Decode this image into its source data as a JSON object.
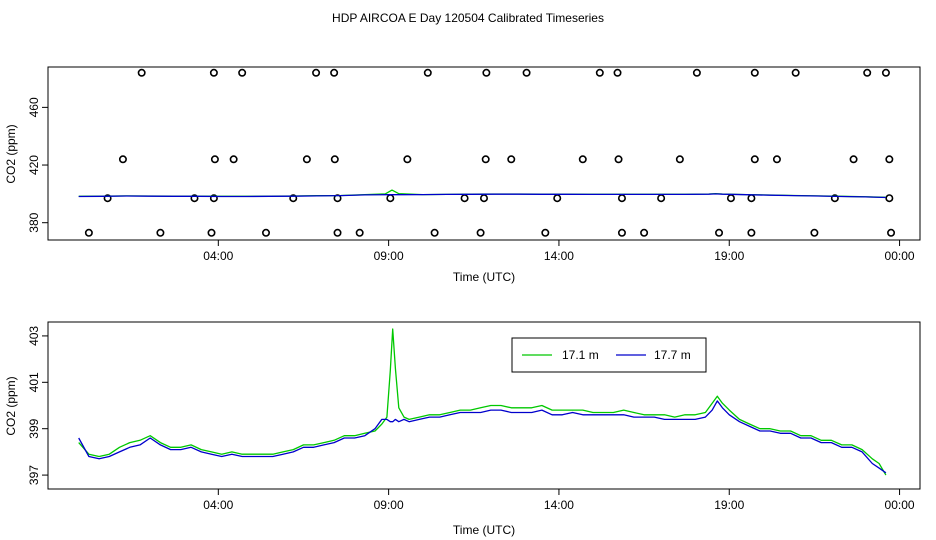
{
  "title": "HDP AIRCOA E  Day 120504  Calibrated Timeseries",
  "colors": {
    "green": "#00c800",
    "blue": "#0000cc",
    "ink": "#000000"
  },
  "chart_data": [
    {
      "type": "scatter",
      "xlabel": "Time (UTC)",
      "ylabel": "CO2 (ppm)",
      "xlim": [
        -1.0,
        24.6
      ],
      "ylim": [
        368,
        488
      ],
      "x_ticks": [
        4,
        9,
        14,
        19,
        24
      ],
      "x_tick_labels": [
        "04:00",
        "09:00",
        "14:00",
        "19:00",
        "00:00"
      ],
      "y_ticks": [
        380,
        420,
        460
      ],
      "y_tick_labels": [
        "380",
        "420",
        "460"
      ],
      "grid": false,
      "series": [
        {
          "marker": "open-circle",
          "points": [
            [
              1.75,
              484
            ],
            [
              3.87,
              484
            ],
            [
              4.7,
              484
            ],
            [
              6.87,
              484
            ],
            [
              7.4,
              484
            ],
            [
              10.15,
              484
            ],
            [
              11.87,
              484
            ],
            [
              13.05,
              484
            ],
            [
              15.2,
              484
            ],
            [
              15.72,
              484
            ],
            [
              18.05,
              484
            ],
            [
              19.75,
              484
            ],
            [
              20.95,
              484
            ],
            [
              23.05,
              484
            ],
            [
              23.6,
              484
            ],
            [
              1.2,
              424
            ],
            [
              3.9,
              424
            ],
            [
              4.45,
              424
            ],
            [
              6.6,
              424
            ],
            [
              7.42,
              424
            ],
            [
              9.55,
              424
            ],
            [
              11.85,
              424
            ],
            [
              12.6,
              424
            ],
            [
              14.7,
              424
            ],
            [
              15.75,
              424
            ],
            [
              17.55,
              424
            ],
            [
              19.75,
              424
            ],
            [
              20.4,
              424
            ],
            [
              22.65,
              424
            ],
            [
              23.7,
              424
            ],
            [
              0.75,
              397
            ],
            [
              3.3,
              397
            ],
            [
              3.87,
              397
            ],
            [
              6.2,
              397
            ],
            [
              7.5,
              397
            ],
            [
              9.05,
              397
            ],
            [
              11.23,
              397
            ],
            [
              11.8,
              397
            ],
            [
              13.95,
              397
            ],
            [
              15.85,
              397
            ],
            [
              17.0,
              397
            ],
            [
              19.05,
              397
            ],
            [
              19.65,
              397
            ],
            [
              22.1,
              397
            ],
            [
              23.7,
              397
            ],
            [
              0.2,
              373
            ],
            [
              2.3,
              373
            ],
            [
              3.8,
              373
            ],
            [
              5.4,
              373
            ],
            [
              7.5,
              373
            ],
            [
              8.15,
              373
            ],
            [
              10.35,
              373
            ],
            [
              11.7,
              373
            ],
            [
              13.6,
              373
            ],
            [
              15.85,
              373
            ],
            [
              16.5,
              373
            ],
            [
              18.7,
              373
            ],
            [
              19.65,
              373
            ],
            [
              21.5,
              373
            ],
            [
              23.75,
              373
            ]
          ]
        },
        {
          "name": "17.1 m",
          "color": "#00c800",
          "x": [
            -0.1,
            0.6,
            1.3,
            2.0,
            2.7,
            3.4,
            4.1,
            4.8,
            5.5,
            6.2,
            6.9,
            7.6,
            8.3,
            8.9,
            9.1,
            9.3,
            10.0,
            10.7,
            11.4,
            12.1,
            12.8,
            13.5,
            14.2,
            14.9,
            15.6,
            16.3,
            17.0,
            17.7,
            18.4,
            18.6,
            18.8,
            19.5,
            20.2,
            20.9,
            21.6,
            22.3,
            23.0,
            23.6
          ],
          "y": [
            398.3,
            398.4,
            398.6,
            398.5,
            398.4,
            398.4,
            398.3,
            398.3,
            398.4,
            398.5,
            398.7,
            398.9,
            399.4,
            400.0,
            402.6,
            400.1,
            399.5,
            399.6,
            399.8,
            399.9,
            399.9,
            399.8,
            399.8,
            399.7,
            399.7,
            399.7,
            399.7,
            399.7,
            399.9,
            400.2,
            399.9,
            399.5,
            399.2,
            398.9,
            398.6,
            398.3,
            398.0,
            397.6
          ]
        },
        {
          "name": "17.7 m",
          "color": "#0000cc",
          "x": [
            -0.1,
            0.6,
            1.3,
            2.0,
            2.7,
            3.4,
            4.1,
            4.8,
            5.5,
            6.2,
            6.9,
            7.6,
            8.3,
            8.9,
            9.1,
            9.3,
            10.0,
            10.7,
            11.4,
            12.1,
            12.8,
            13.5,
            14.2,
            14.9,
            15.6,
            16.3,
            17.0,
            17.7,
            18.4,
            18.6,
            18.8,
            19.5,
            20.2,
            20.9,
            21.6,
            22.3,
            23.0,
            23.6
          ],
          "y": [
            398.2,
            398.3,
            398.5,
            398.4,
            398.3,
            398.3,
            398.2,
            398.2,
            398.3,
            398.4,
            398.6,
            398.8,
            399.3,
            399.4,
            399.4,
            399.4,
            399.5,
            399.6,
            399.7,
            399.8,
            399.8,
            399.7,
            399.7,
            399.6,
            399.6,
            399.6,
            399.6,
            399.6,
            399.8,
            400.0,
            399.8,
            399.4,
            399.1,
            398.8,
            398.5,
            398.2,
            397.9,
            397.5
          ]
        }
      ]
    },
    {
      "type": "line",
      "xlabel": "Time (UTC)",
      "ylabel": "CO2 (ppm)",
      "xlim": [
        -1.0,
        24.6
      ],
      "ylim": [
        396.4,
        403.6
      ],
      "x_ticks": [
        4,
        9,
        14,
        19,
        24
      ],
      "x_tick_labels": [
        "04:00",
        "09:00",
        "14:00",
        "19:00",
        "00:00"
      ],
      "y_ticks": [
        397,
        399,
        401,
        403
      ],
      "y_tick_labels": [
        "397",
        "399",
        "401",
        "403"
      ],
      "grid": false,
      "legend": "top-center",
      "series": [
        {
          "name": "17.1 m",
          "color": "#00c800",
          "x": [
            -0.1,
            0.2,
            0.5,
            0.8,
            1.1,
            1.4,
            1.7,
            2.0,
            2.3,
            2.6,
            2.9,
            3.2,
            3.5,
            3.8,
            4.1,
            4.4,
            4.7,
            5.0,
            5.3,
            5.6,
            5.9,
            6.2,
            6.5,
            6.8,
            7.1,
            7.4,
            7.7,
            8.0,
            8.3,
            8.6,
            8.8,
            8.95,
            9.05,
            9.12,
            9.2,
            9.3,
            9.45,
            9.6,
            9.9,
            10.2,
            10.5,
            10.8,
            11.1,
            11.4,
            11.7,
            12.0,
            12.3,
            12.6,
            12.9,
            13.2,
            13.5,
            13.8,
            14.1,
            14.4,
            14.7,
            15.0,
            15.3,
            15.6,
            15.9,
            16.2,
            16.5,
            16.8,
            17.1,
            17.4,
            17.7,
            18.0,
            18.3,
            18.5,
            18.65,
            18.8,
            19.0,
            19.3,
            19.6,
            19.9,
            20.2,
            20.5,
            20.8,
            21.1,
            21.4,
            21.7,
            22.0,
            22.3,
            22.6,
            22.9,
            23.2,
            23.4,
            23.6
          ],
          "y": [
            398.4,
            397.9,
            397.8,
            397.9,
            398.2,
            398.4,
            398.5,
            398.7,
            398.4,
            398.2,
            398.2,
            398.3,
            398.1,
            398.0,
            397.9,
            398.0,
            397.9,
            397.9,
            397.9,
            397.9,
            398.0,
            398.1,
            398.3,
            398.3,
            398.4,
            398.5,
            398.7,
            398.7,
            398.8,
            398.9,
            399.2,
            399.5,
            401.5,
            403.3,
            401.6,
            399.9,
            399.5,
            399.4,
            399.5,
            399.6,
            399.6,
            399.7,
            399.8,
            399.8,
            399.9,
            400.0,
            400.0,
            399.9,
            399.9,
            399.9,
            400.0,
            399.8,
            399.8,
            399.8,
            399.8,
            399.7,
            399.7,
            399.7,
            399.8,
            399.7,
            399.6,
            399.6,
            399.6,
            399.5,
            399.6,
            399.6,
            399.7,
            400.1,
            400.4,
            400.1,
            399.8,
            399.4,
            399.2,
            399.0,
            399.0,
            398.9,
            398.9,
            398.7,
            398.7,
            398.5,
            398.5,
            398.3,
            398.3,
            398.1,
            397.7,
            397.5,
            397.0
          ]
        },
        {
          "name": "17.7 m",
          "color": "#0000cc",
          "x": [
            -0.1,
            0.2,
            0.5,
            0.8,
            1.1,
            1.4,
            1.7,
            2.0,
            2.3,
            2.6,
            2.9,
            3.2,
            3.5,
            3.8,
            4.1,
            4.4,
            4.7,
            5.0,
            5.3,
            5.6,
            5.9,
            6.2,
            6.5,
            6.8,
            7.1,
            7.4,
            7.7,
            8.0,
            8.3,
            8.6,
            8.8,
            8.95,
            9.05,
            9.12,
            9.2,
            9.3,
            9.45,
            9.6,
            9.9,
            10.2,
            10.5,
            10.8,
            11.1,
            11.4,
            11.7,
            12.0,
            12.3,
            12.6,
            12.9,
            13.2,
            13.5,
            13.8,
            14.1,
            14.4,
            14.7,
            15.0,
            15.3,
            15.6,
            15.9,
            16.2,
            16.5,
            16.8,
            17.1,
            17.4,
            17.7,
            18.0,
            18.3,
            18.5,
            18.65,
            18.8,
            19.0,
            19.3,
            19.6,
            19.9,
            20.2,
            20.5,
            20.8,
            21.1,
            21.4,
            21.7,
            22.0,
            22.3,
            22.6,
            22.9,
            23.2,
            23.4,
            23.6
          ],
          "y": [
            398.6,
            397.8,
            397.7,
            397.8,
            398.0,
            398.2,
            398.3,
            398.6,
            398.3,
            398.1,
            398.1,
            398.2,
            398.0,
            397.9,
            397.8,
            397.9,
            397.8,
            397.8,
            397.8,
            397.8,
            397.9,
            398.0,
            398.2,
            398.2,
            398.3,
            398.4,
            398.6,
            398.6,
            398.7,
            399.0,
            399.4,
            399.4,
            399.3,
            399.3,
            399.4,
            399.3,
            399.4,
            399.3,
            399.4,
            399.5,
            399.5,
            399.6,
            399.7,
            399.7,
            399.7,
            399.8,
            399.8,
            399.7,
            399.7,
            399.7,
            399.8,
            399.6,
            399.6,
            399.7,
            399.6,
            399.6,
            399.6,
            399.6,
            399.6,
            399.5,
            399.5,
            399.5,
            399.4,
            399.4,
            399.4,
            399.4,
            399.5,
            399.8,
            400.2,
            399.9,
            399.6,
            399.3,
            399.1,
            398.9,
            398.9,
            398.8,
            398.8,
            398.6,
            398.6,
            398.4,
            398.4,
            398.2,
            398.2,
            398.0,
            397.5,
            397.3,
            397.1
          ]
        }
      ]
    }
  ]
}
